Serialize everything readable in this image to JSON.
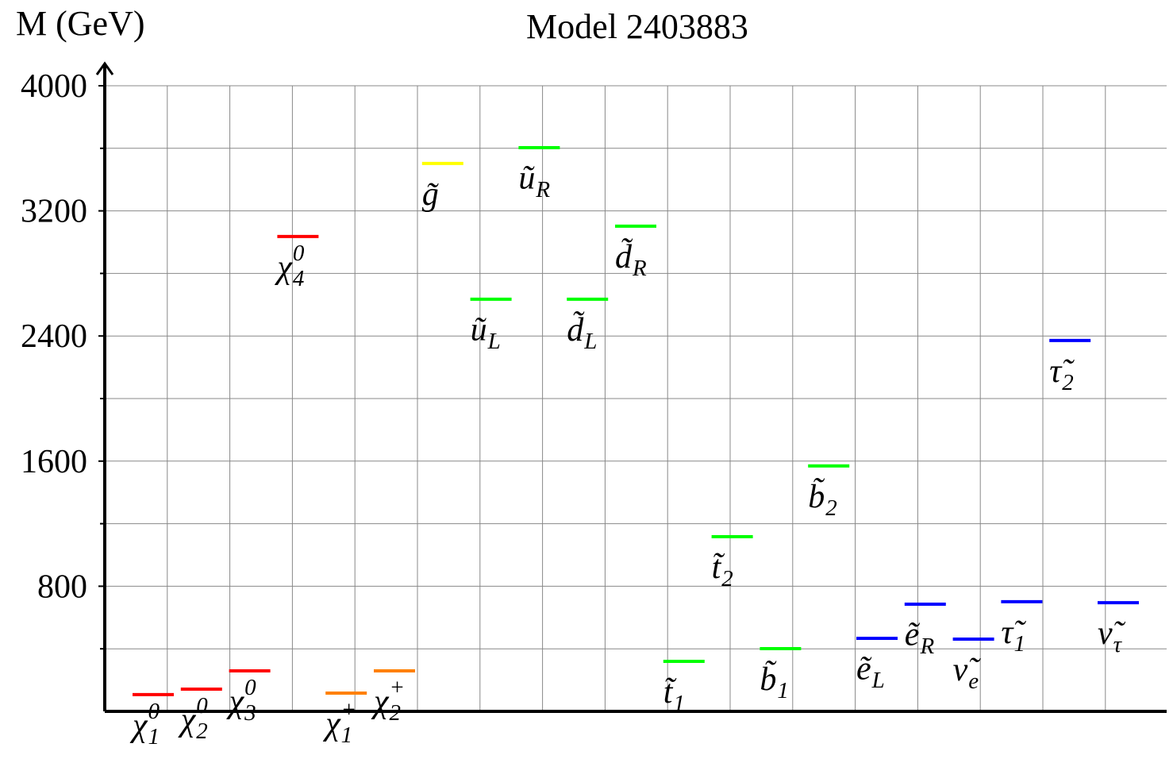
{
  "chart_data": {
    "type": "spectrum",
    "title": "Model 2403883",
    "y_label": "M (GeV)",
    "ylim": [
      0,
      4000
    ],
    "yticks": [
      800,
      1600,
      2400,
      3200,
      4000
    ],
    "minor_yticks": [
      400,
      1200,
      2000,
      2800,
      3600
    ],
    "grid": true,
    "categories": [
      {
        "base": "χ",
        "sub": "1",
        "sup": "0"
      },
      {
        "base": "χ",
        "sub": "2",
        "sup": "0"
      },
      {
        "base": "χ",
        "sub": "3",
        "sup": "0"
      },
      {
        "base": "χ",
        "sub": "4",
        "sup": "0"
      },
      {
        "base": "χ",
        "sub": "1",
        "sup": "+"
      },
      {
        "base": "χ",
        "sub": "2",
        "sup": "+"
      },
      {
        "base": "g̃"
      },
      {
        "base": "ũ",
        "sub": "L"
      },
      {
        "base": "ũ",
        "sub": "R"
      },
      {
        "base": "d̃",
        "sub": "L"
      },
      {
        "base": "d̃",
        "sub": "R"
      },
      {
        "base": "t̃",
        "sub": "1"
      },
      {
        "base": "t̃",
        "sub": "2"
      },
      {
        "base": "b̃",
        "sub": "1"
      },
      {
        "base": "b̃",
        "sub": "2"
      },
      {
        "base": "ẽ",
        "sub": "L"
      },
      {
        "base": "ẽ",
        "sub": "R"
      },
      {
        "base": "ν̃",
        "sub": "e"
      },
      {
        "base": "τ̃",
        "sub": "1"
      },
      {
        "base": "τ̃",
        "sub": "2"
      },
      {
        "base": "ν̃",
        "sub": "τ"
      }
    ],
    "values": [
      107,
      142,
      259,
      3036,
      117,
      259,
      3503,
      2635,
      3604,
      2635,
      3102,
      320,
      1117,
      401,
      1569,
      467,
      685,
      462,
      701,
      2371,
      695
    ],
    "colors": [
      "#ff0000",
      "#ff0000",
      "#ff0000",
      "#ff0000",
      "#ff8000",
      "#ff8000",
      "#ffff00",
      "#00ff00",
      "#00ff00",
      "#00ff00",
      "#00ff00",
      "#00ff00",
      "#00ff00",
      "#00ff00",
      "#00ff00",
      "#0000ff",
      "#0000ff",
      "#0000ff",
      "#0000ff",
      "#0000ff",
      "#0000ff"
    ]
  }
}
